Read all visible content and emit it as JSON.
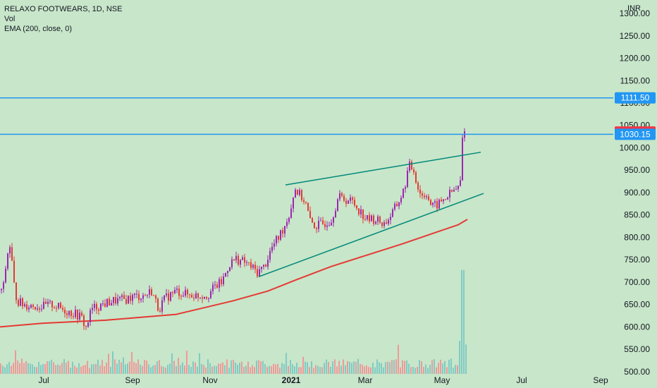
{
  "header": {
    "symbol_line": "RELAXO FOOTWEARS, 1D, NSE",
    "volume_label": "Vol",
    "ema_label": "EMA (200, close, 0)"
  },
  "currency": "INR",
  "colors": {
    "background": "#c8e6c9",
    "up_candle": "#9c27b0",
    "down_candle": "#e53935",
    "vol_up": "#80cbc4",
    "vol_down": "#ef9a9a",
    "ema": "#e53935",
    "hline": "#2196f3",
    "trendline": "#00897b",
    "last_price_tag": "#f23645",
    "hline_tag": "#2196f3"
  },
  "chart_data": {
    "type": "candlestick",
    "title": "RELAXO FOOTWEARS, 1D, NSE",
    "ylim": [
      495,
      1330
    ],
    "y_ticks": [
      "500.00",
      "550.00",
      "600.00",
      "650.00",
      "700.00",
      "750.00",
      "800.00",
      "850.00",
      "900.00",
      "950.00",
      "1000.00",
      "1050.00",
      "1100.00",
      "1150.00",
      "1200.00",
      "1250.00",
      "1300.00"
    ],
    "x_ticks": [
      "Jul",
      "Sep",
      "Nov",
      "2021",
      "Mar",
      "May",
      "Jul",
      "Sep"
    ],
    "x_tick_index": [
      62,
      188,
      298,
      413,
      518,
      627,
      740,
      852
    ],
    "xlim_index": [
      0,
      870
    ],
    "last_price": "1035.25",
    "horizontal_lines": [
      {
        "value": 1111.5,
        "label": "1111.50"
      },
      {
        "value": 1030.15,
        "label": "1030.15"
      }
    ],
    "trendlines": [
      {
        "x1": 405,
        "y1": 917,
        "x2": 682,
        "y2": 990
      },
      {
        "x1": 367,
        "y1": 712,
        "x2": 686,
        "y2": 898
      }
    ],
    "price_anchors": [
      [
        0,
        680
      ],
      [
        5,
        690
      ],
      [
        10,
        760
      ],
      [
        15,
        785
      ],
      [
        19,
        700
      ],
      [
        24,
        660
      ],
      [
        32,
        650
      ],
      [
        45,
        648
      ],
      [
        60,
        645
      ],
      [
        75,
        650
      ],
      [
        90,
        638
      ],
      [
        105,
        630
      ],
      [
        115,
        622
      ],
      [
        122,
        598
      ],
      [
        130,
        640
      ],
      [
        145,
        650
      ],
      [
        160,
        658
      ],
      [
        175,
        660
      ],
      [
        190,
        668
      ],
      [
        205,
        670
      ],
      [
        215,
        680
      ],
      [
        225,
        640
      ],
      [
        235,
        665
      ],
      [
        250,
        680
      ],
      [
        265,
        672
      ],
      [
        280,
        670
      ],
      [
        295,
        672
      ],
      [
        305,
        690
      ],
      [
        315,
        700
      ],
      [
        325,
        740
      ],
      [
        335,
        752
      ],
      [
        350,
        742
      ],
      [
        365,
        722
      ],
      [
        375,
        735
      ],
      [
        385,
        775
      ],
      [
        395,
        800
      ],
      [
        405,
        830
      ],
      [
        412,
        860
      ],
      [
        418,
        910
      ],
      [
        425,
        895
      ],
      [
        433,
        880
      ],
      [
        440,
        835
      ],
      [
        448,
        825
      ],
      [
        458,
        830
      ],
      [
        470,
        840
      ],
      [
        480,
        890
      ],
      [
        490,
        885
      ],
      [
        500,
        880
      ],
      [
        510,
        860
      ],
      [
        520,
        840
      ],
      [
        533,
        840
      ],
      [
        545,
        830
      ],
      [
        555,
        850
      ],
      [
        565,
        878
      ],
      [
        573,
        905
      ],
      [
        580,
        960
      ],
      [
        587,
        950
      ],
      [
        593,
        910
      ],
      [
        600,
        890
      ],
      [
        605,
        900
      ],
      [
        612,
        868
      ],
      [
        620,
        872
      ],
      [
        630,
        885
      ],
      [
        640,
        900
      ],
      [
        650,
        910
      ],
      [
        654,
        930
      ],
      [
        656,
        1020
      ],
      [
        658,
        1050
      ],
      [
        661,
        1035
      ]
    ],
    "ema_points": [
      [
        0,
        600
      ],
      [
        60,
        608
      ],
      [
        150,
        615
      ],
      [
        250,
        628
      ],
      [
        330,
        658
      ],
      [
        380,
        680
      ],
      [
        420,
        705
      ],
      [
        470,
        735
      ],
      [
        520,
        760
      ],
      [
        570,
        785
      ],
      [
        620,
        812
      ],
      [
        650,
        828
      ],
      [
        663,
        840
      ]
    ],
    "volume_ylim": [
      0,
      760
    ]
  }
}
